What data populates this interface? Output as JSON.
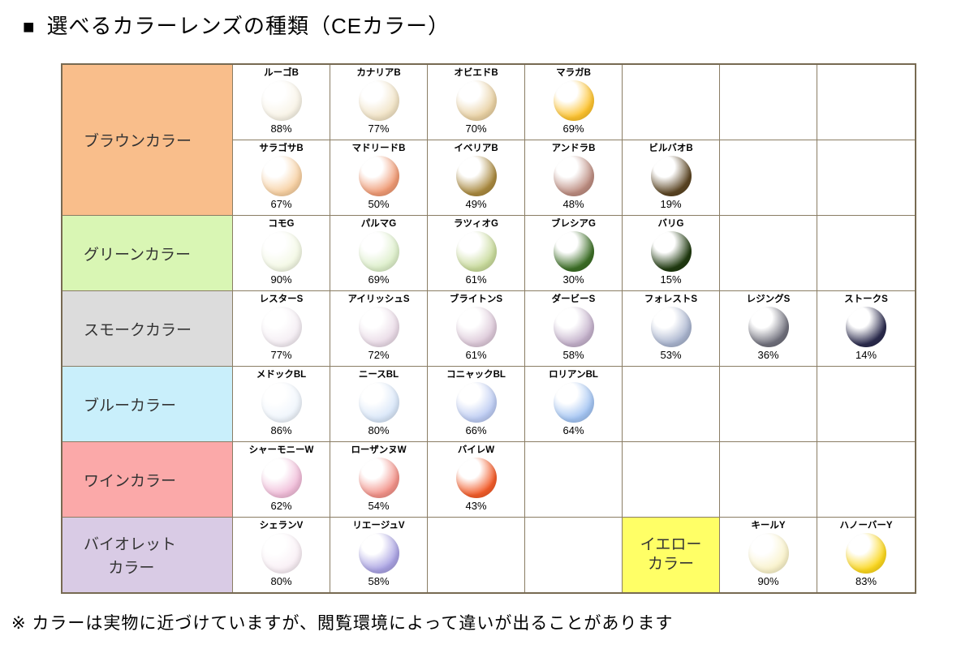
{
  "title_bullet": "■",
  "title_text": "選べるカラーレンズの種類（CEカラー）",
  "footnote": "※ カラーは実物に近づけていますが、閲覧環境によって違いが出ることがあります",
  "table": {
    "lens_columns": 7,
    "rows": [
      {
        "label": {
          "lines": [
            "ブラウンカラー"
          ],
          "bg": "#f9be8b"
        },
        "subrows": [
          [
            {
              "name": "ルーゴB",
              "pct": "88%",
              "color": "#f8f3e6"
            },
            {
              "name": "カナリアB",
              "pct": "77%",
              "color": "#f0e2c4"
            },
            {
              "name": "オビエドB",
              "pct": "70%",
              "color": "#e8d0a2"
            },
            {
              "name": "マラガB",
              "pct": "69%",
              "color": "#fcc22e"
            },
            null,
            null,
            null
          ],
          [
            {
              "name": "サラゴサB",
              "pct": "67%",
              "color": "#f7d0a2"
            },
            {
              "name": "マドリードB",
              "pct": "50%",
              "color": "#ef9a74"
            },
            {
              "name": "イベリアB",
              "pct": "49%",
              "color": "#a9893f"
            },
            {
              "name": "アンドラB",
              "pct": "48%",
              "color": "#bc8c80"
            },
            {
              "name": "ビルバオB",
              "pct": "19%",
              "color": "#5b4523"
            },
            null,
            null
          ]
        ]
      },
      {
        "label": {
          "lines": [
            "グリーンカラー"
          ],
          "bg": "#d9f6b4"
        },
        "subrows": [
          [
            {
              "name": "コモG",
              "pct": "90%",
              "color": "#f3f8e4"
            },
            {
              "name": "パルマG",
              "pct": "69%",
              "color": "#dceec9"
            },
            {
              "name": "ラツィオG",
              "pct": "61%",
              "color": "#c8da9b"
            },
            {
              "name": "ブレシアG",
              "pct": "30%",
              "color": "#3c6e26"
            },
            {
              "name": "バリG",
              "pct": "15%",
              "color": "#203a10"
            },
            null,
            null
          ]
        ]
      },
      {
        "label": {
          "lines": [
            "スモークカラー"
          ],
          "bg": "#dcdcdc"
        },
        "subrows": [
          [
            {
              "name": "レスターS",
              "pct": "77%",
              "color": "#f4edf3"
            },
            {
              "name": "アイリッシュS",
              "pct": "72%",
              "color": "#e9dae6"
            },
            {
              "name": "ブライトンS",
              "pct": "61%",
              "color": "#dcc8d8"
            },
            {
              "name": "ダービーS",
              "pct": "58%",
              "color": "#c3b0ca"
            },
            {
              "name": "フォレストS",
              "pct": "53%",
              "color": "#a9b4ce"
            },
            {
              "name": "レジングS",
              "pct": "36%",
              "color": "#70707c"
            },
            {
              "name": "ストークS",
              "pct": "14%",
              "color": "#2b2b4d"
            }
          ]
        ]
      },
      {
        "label": {
          "lines": [
            "ブルーカラー"
          ],
          "bg": "#c9effb"
        },
        "subrows": [
          [
            {
              "name": "メドックBL",
              "pct": "86%",
              "color": "#eff5fc"
            },
            {
              "name": "ニースBL",
              "pct": "80%",
              "color": "#d8e6f8"
            },
            {
              "name": "コニャックBL",
              "pct": "66%",
              "color": "#bccbf2"
            },
            {
              "name": "ロリアンBL",
              "pct": "64%",
              "color": "#a3c4f2"
            },
            null,
            null,
            null
          ]
        ]
      },
      {
        "label": {
          "lines": [
            "ワインカラー"
          ],
          "bg": "#fba9a9"
        },
        "subrows": [
          [
            {
              "name": "シャーモニーW",
              "pct": "62%",
              "color": "#f0bcd8"
            },
            {
              "name": "ローザンヌW",
              "pct": "54%",
              "color": "#f29289"
            },
            {
              "name": "バイレW",
              "pct": "43%",
              "color": "#f25c2a"
            },
            null,
            null,
            null,
            null
          ]
        ]
      },
      {
        "label": {
          "lines": [
            "バイオレット",
            "カラー"
          ],
          "bg": "#d9cbe5"
        },
        "subrows": [
          [
            {
              "name": "シェランV",
              "pct": "80%",
              "color": "#f9eff5"
            },
            {
              "name": "リエージュV",
              "pct": "58%",
              "color": "#a9a2e2"
            },
            null,
            null,
            {
              "type": "category",
              "lines": [
                "イエロー",
                "カラー"
              ],
              "bg": "#ffff66"
            },
            {
              "name": "キールY",
              "pct": "90%",
              "color": "#f9f2ca"
            },
            {
              "name": "ハノーバーY",
              "pct": "83%",
              "color": "#fbd71e"
            }
          ]
        ]
      }
    ]
  }
}
